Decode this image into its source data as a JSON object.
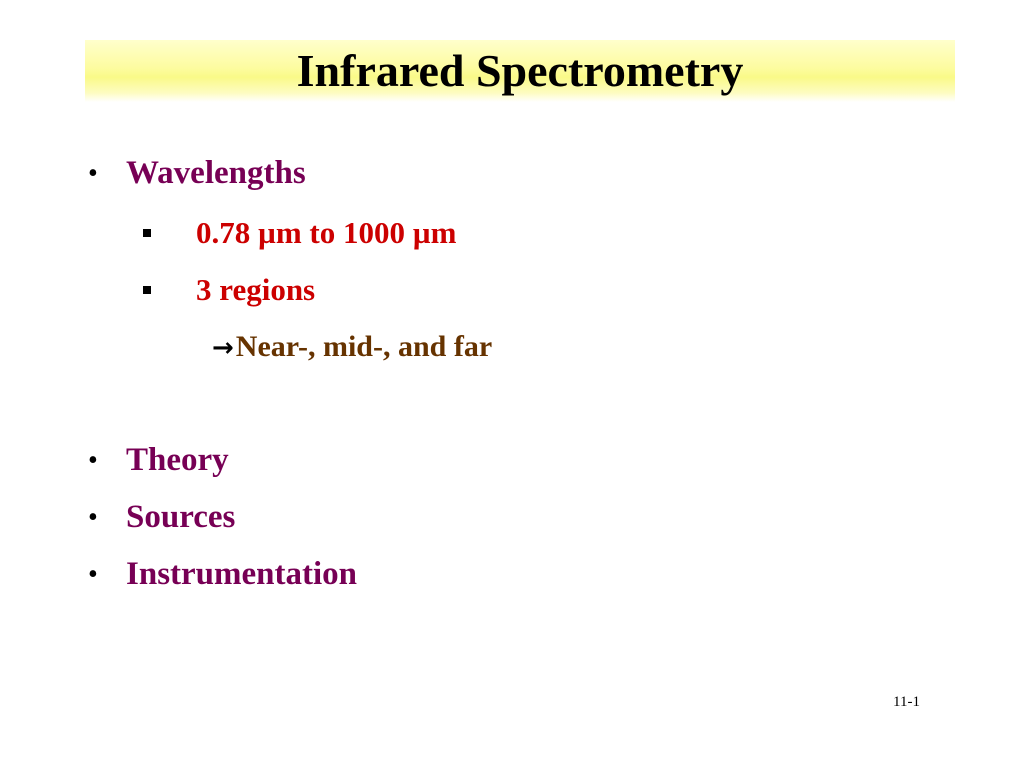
{
  "slide": {
    "title": "Infrared Spectrometry",
    "bullets": [
      {
        "label": "Wavelengths",
        "sub": [
          {
            "label": "0.78 µm to 1000 µm"
          },
          {
            "label": "3 regions",
            "sub": [
              {
                "label": "Near-, mid-, and far"
              }
            ]
          }
        ]
      },
      {
        "label": "Theory"
      },
      {
        "label": "Sources"
      },
      {
        "label": "Instrumentation"
      }
    ],
    "page_number": "11-1"
  },
  "colors": {
    "title_band": "#fafa88",
    "level1_text": "#770055",
    "level2_text": "#cc0000",
    "level3_text": "#663300"
  },
  "icons": {
    "level1_marker": "bullet-dot-icon",
    "level2_marker": "square-bullet-icon",
    "level3_marker": "right-arrow-icon"
  }
}
